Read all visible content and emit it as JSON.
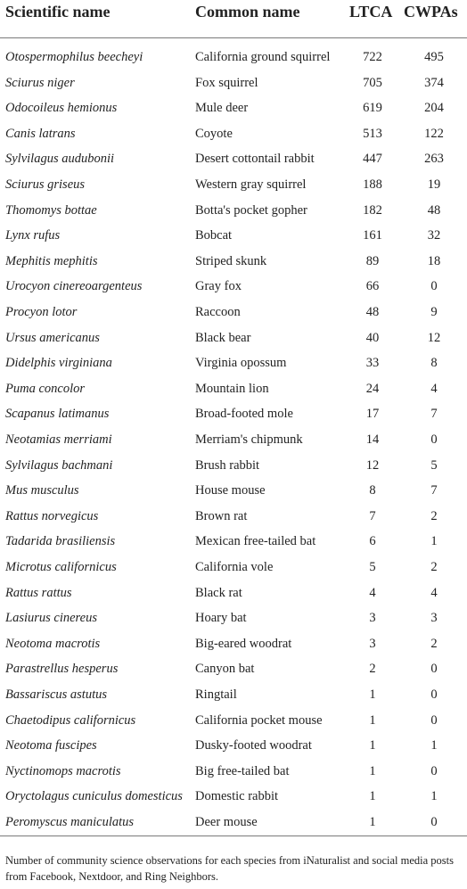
{
  "headers": {
    "scientific_name": "Scientific name",
    "common_name": "Common name",
    "ltca": "LTCA",
    "cwpas": "CWPAs"
  },
  "rows": [
    {
      "sci": "Otospermophilus beecheyi",
      "common": "California ground squirrel",
      "ltca": "722",
      "cwpas": "495"
    },
    {
      "sci": "Sciurus niger",
      "common": "Fox squirrel",
      "ltca": "705",
      "cwpas": "374"
    },
    {
      "sci": "Odocoileus hemionus",
      "common": "Mule deer",
      "ltca": "619",
      "cwpas": "204"
    },
    {
      "sci": "Canis latrans",
      "common": "Coyote",
      "ltca": "513",
      "cwpas": "122"
    },
    {
      "sci": "Sylvilagus audubonii",
      "common": "Desert cottontail rabbit",
      "ltca": "447",
      "cwpas": "263"
    },
    {
      "sci": "Sciurus griseus",
      "common": "Western gray squirrel",
      "ltca": "188",
      "cwpas": "19"
    },
    {
      "sci": "Thomomys bottae",
      "common": "Botta's pocket gopher",
      "ltca": "182",
      "cwpas": "48"
    },
    {
      "sci": "Lynx rufus",
      "common": "Bobcat",
      "ltca": "161",
      "cwpas": "32"
    },
    {
      "sci": "Mephitis mephitis",
      "common": "Striped skunk",
      "ltca": "89",
      "cwpas": "18"
    },
    {
      "sci": "Urocyon cinereoargenteus",
      "common": "Gray fox",
      "ltca": "66",
      "cwpas": "0"
    },
    {
      "sci": "Procyon lotor",
      "common": "Raccoon",
      "ltca": "48",
      "cwpas": "9"
    },
    {
      "sci": "Ursus americanus",
      "common": "Black bear",
      "ltca": "40",
      "cwpas": "12"
    },
    {
      "sci": "Didelphis virginiana",
      "common": "Virginia opossum",
      "ltca": "33",
      "cwpas": "8"
    },
    {
      "sci": "Puma concolor",
      "common": "Mountain lion",
      "ltca": "24",
      "cwpas": "4"
    },
    {
      "sci": "Scapanus latimanus",
      "common": "Broad-footed mole",
      "ltca": "17",
      "cwpas": "7"
    },
    {
      "sci": "Neotamias merriami",
      "common": "Merriam's chipmunk",
      "ltca": "14",
      "cwpas": "0"
    },
    {
      "sci": "Sylvilagus bachmani",
      "common": "Brush rabbit",
      "ltca": "12",
      "cwpas": "5"
    },
    {
      "sci": "Mus musculus",
      "common": "House mouse",
      "ltca": "8",
      "cwpas": "7"
    },
    {
      "sci": "Rattus norvegicus",
      "common": "Brown rat",
      "ltca": "7",
      "cwpas": "2"
    },
    {
      "sci": "Tadarida brasiliensis",
      "common": "Mexican free-tailed bat",
      "ltca": "6",
      "cwpas": "1"
    },
    {
      "sci": "Microtus californicus",
      "common": "California vole",
      "ltca": "5",
      "cwpas": "2"
    },
    {
      "sci": "Rattus rattus",
      "common": "Black rat",
      "ltca": "4",
      "cwpas": "4"
    },
    {
      "sci": "Lasiurus cinereus",
      "common": "Hoary bat",
      "ltca": "3",
      "cwpas": "3"
    },
    {
      "sci": "Neotoma macrotis",
      "common": "Big-eared woodrat",
      "ltca": "3",
      "cwpas": "2"
    },
    {
      "sci": "Parastrellus hesperus",
      "common": "Canyon bat",
      "ltca": "2",
      "cwpas": "0"
    },
    {
      "sci": "Bassariscus astutus",
      "common": "Ringtail",
      "ltca": "1",
      "cwpas": "0"
    },
    {
      "sci": "Chaetodipus californicus",
      "common": "California pocket mouse",
      "ltca": "1",
      "cwpas": "0"
    },
    {
      "sci": "Neotoma fuscipes",
      "common": "Dusky-footed woodrat",
      "ltca": "1",
      "cwpas": "1"
    },
    {
      "sci": "Nyctinomops macrotis",
      "common": "Big free-tailed bat",
      "ltca": "1",
      "cwpas": "0"
    },
    {
      "sci": "Oryctolagus cuniculus domesticus",
      "common": "Domestic rabbit",
      "ltca": "1",
      "cwpas": "1"
    },
    {
      "sci": "Peromyscus maniculatus",
      "common": "Deer mouse",
      "ltca": "1",
      "cwpas": "0"
    }
  ],
  "footnote": "Number of community science observations for each species from iNaturalist and social media posts from Facebook, Nextdoor, and Ring Neighbors."
}
